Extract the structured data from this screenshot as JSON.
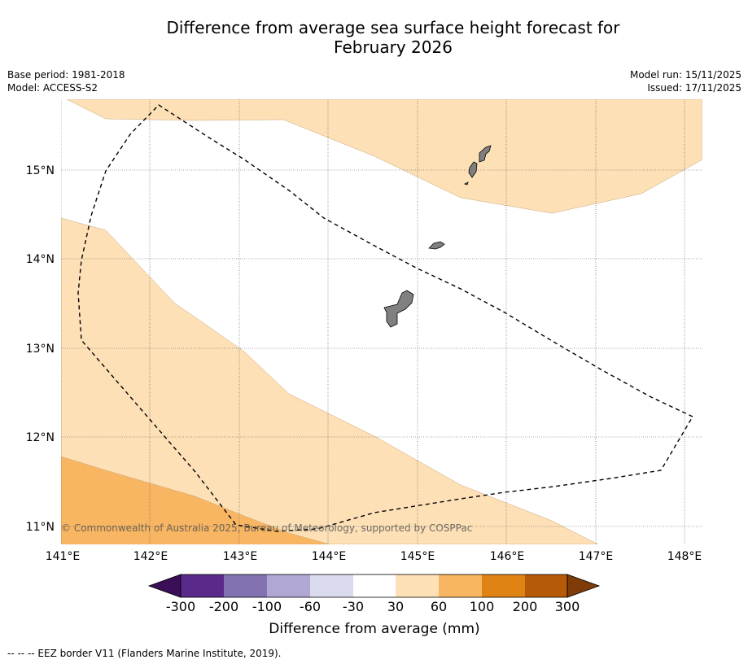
{
  "title_line1": "Difference from average sea surface height forecast for",
  "title_line2": "February 2026",
  "meta": {
    "base_period": "Base period: 1981-2018",
    "model": "Model: ACCESS-S2",
    "model_run": "Model run: 15/11/2025",
    "issued": "Issued: 17/11/2025"
  },
  "map": {
    "lon_labels": [
      "141°E",
      "142°E",
      "143°E",
      "144°E",
      "145°E",
      "146°E",
      "147°E",
      "148°E"
    ],
    "lat_labels": [
      "15°N",
      "14°N",
      "13°N",
      "12°N",
      "11°N"
    ],
    "copyright": "© Commonwealth of Australia 2025, Bureau of Meteorology, supported by COSPPac",
    "colors": {
      "land": "#808080",
      "band_30_60": "#fde0b6",
      "band_60_100": "#f9b662"
    }
  },
  "colorbar": {
    "title": "Difference from average (mm)",
    "tick_labels": [
      "-300",
      "-200",
      "-100",
      "-60",
      "-30",
      "30",
      "60",
      "100",
      "200",
      "300"
    ],
    "colors": [
      "#3b0f57",
      "#5a2a8a",
      "#8272b1",
      "#b0a7d3",
      "#dadaee",
      "#ffffff",
      "#fde0b6",
      "#f9b662",
      "#e08315",
      "#b55b07",
      "#7f3c08"
    ]
  },
  "footnote": "--  --  -- EEZ border V11 (Flanders Marine Institute, 2019)."
}
